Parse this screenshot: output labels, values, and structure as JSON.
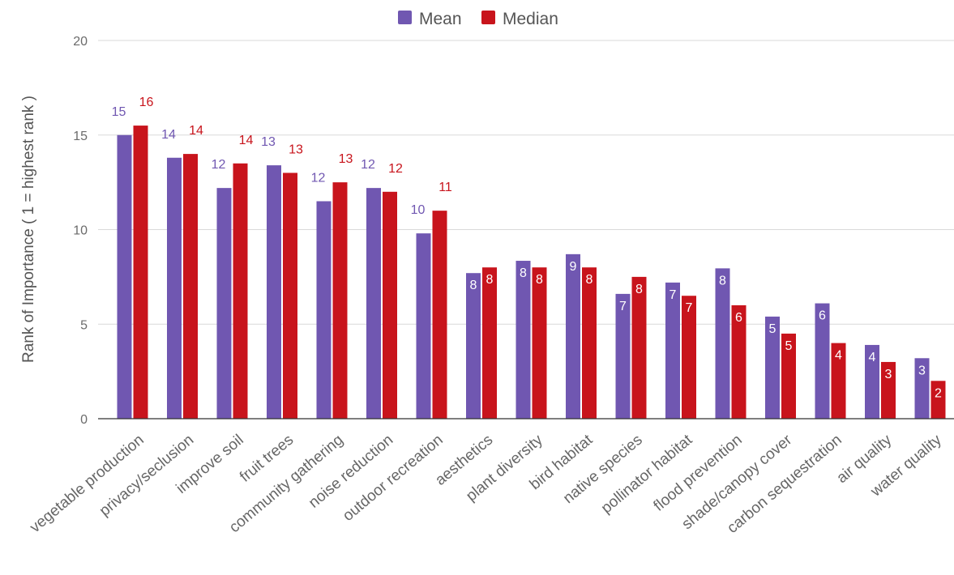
{
  "chart_data": {
    "type": "bar",
    "title": "",
    "xlabel": "",
    "ylabel": "Rank of Importance  ( 1 = highest rank )",
    "ylim": [
      0,
      20
    ],
    "yticks": [
      0,
      5,
      10,
      15,
      20
    ],
    "grid": true,
    "legend_position": "top-center",
    "categories": [
      "vegetable production",
      "privacy/seclusion",
      "improve soil",
      "fruit trees",
      "community gathering",
      "noise reduction",
      "outdoor recreation",
      "aesthetics",
      "plant diversity",
      "bird habitat",
      "native species",
      "pollinator habitat",
      "flood prevention",
      "shade/canopy cover",
      "carbon sequestration",
      "air quality",
      "water quality"
    ],
    "series": [
      {
        "name": "Mean",
        "color": "#7057b1",
        "values": [
          15.0,
          13.8,
          12.2,
          13.4,
          11.5,
          12.2,
          9.8,
          7.7,
          8.35,
          8.7,
          6.6,
          7.2,
          7.95,
          5.4,
          6.1,
          3.9,
          3.2
        ],
        "labels": [
          "15",
          "14",
          "12",
          "13",
          "12",
          "12",
          "10",
          "8",
          "8",
          "9",
          "7",
          "7",
          "8",
          "5",
          "6",
          "4",
          "3"
        ]
      },
      {
        "name": "Median",
        "color": "#c8141c",
        "values": [
          15.5,
          14.0,
          13.5,
          13.0,
          12.5,
          12.0,
          11.0,
          8.0,
          8.0,
          8.0,
          7.5,
          6.5,
          6.0,
          4.5,
          4.0,
          3.0,
          2.0
        ],
        "labels": [
          "16",
          "14",
          "14",
          "13",
          "13",
          "12",
          "11",
          "8",
          "8",
          "8",
          "8",
          "7",
          "6",
          "5",
          "4",
          "3",
          "2"
        ]
      }
    ]
  }
}
